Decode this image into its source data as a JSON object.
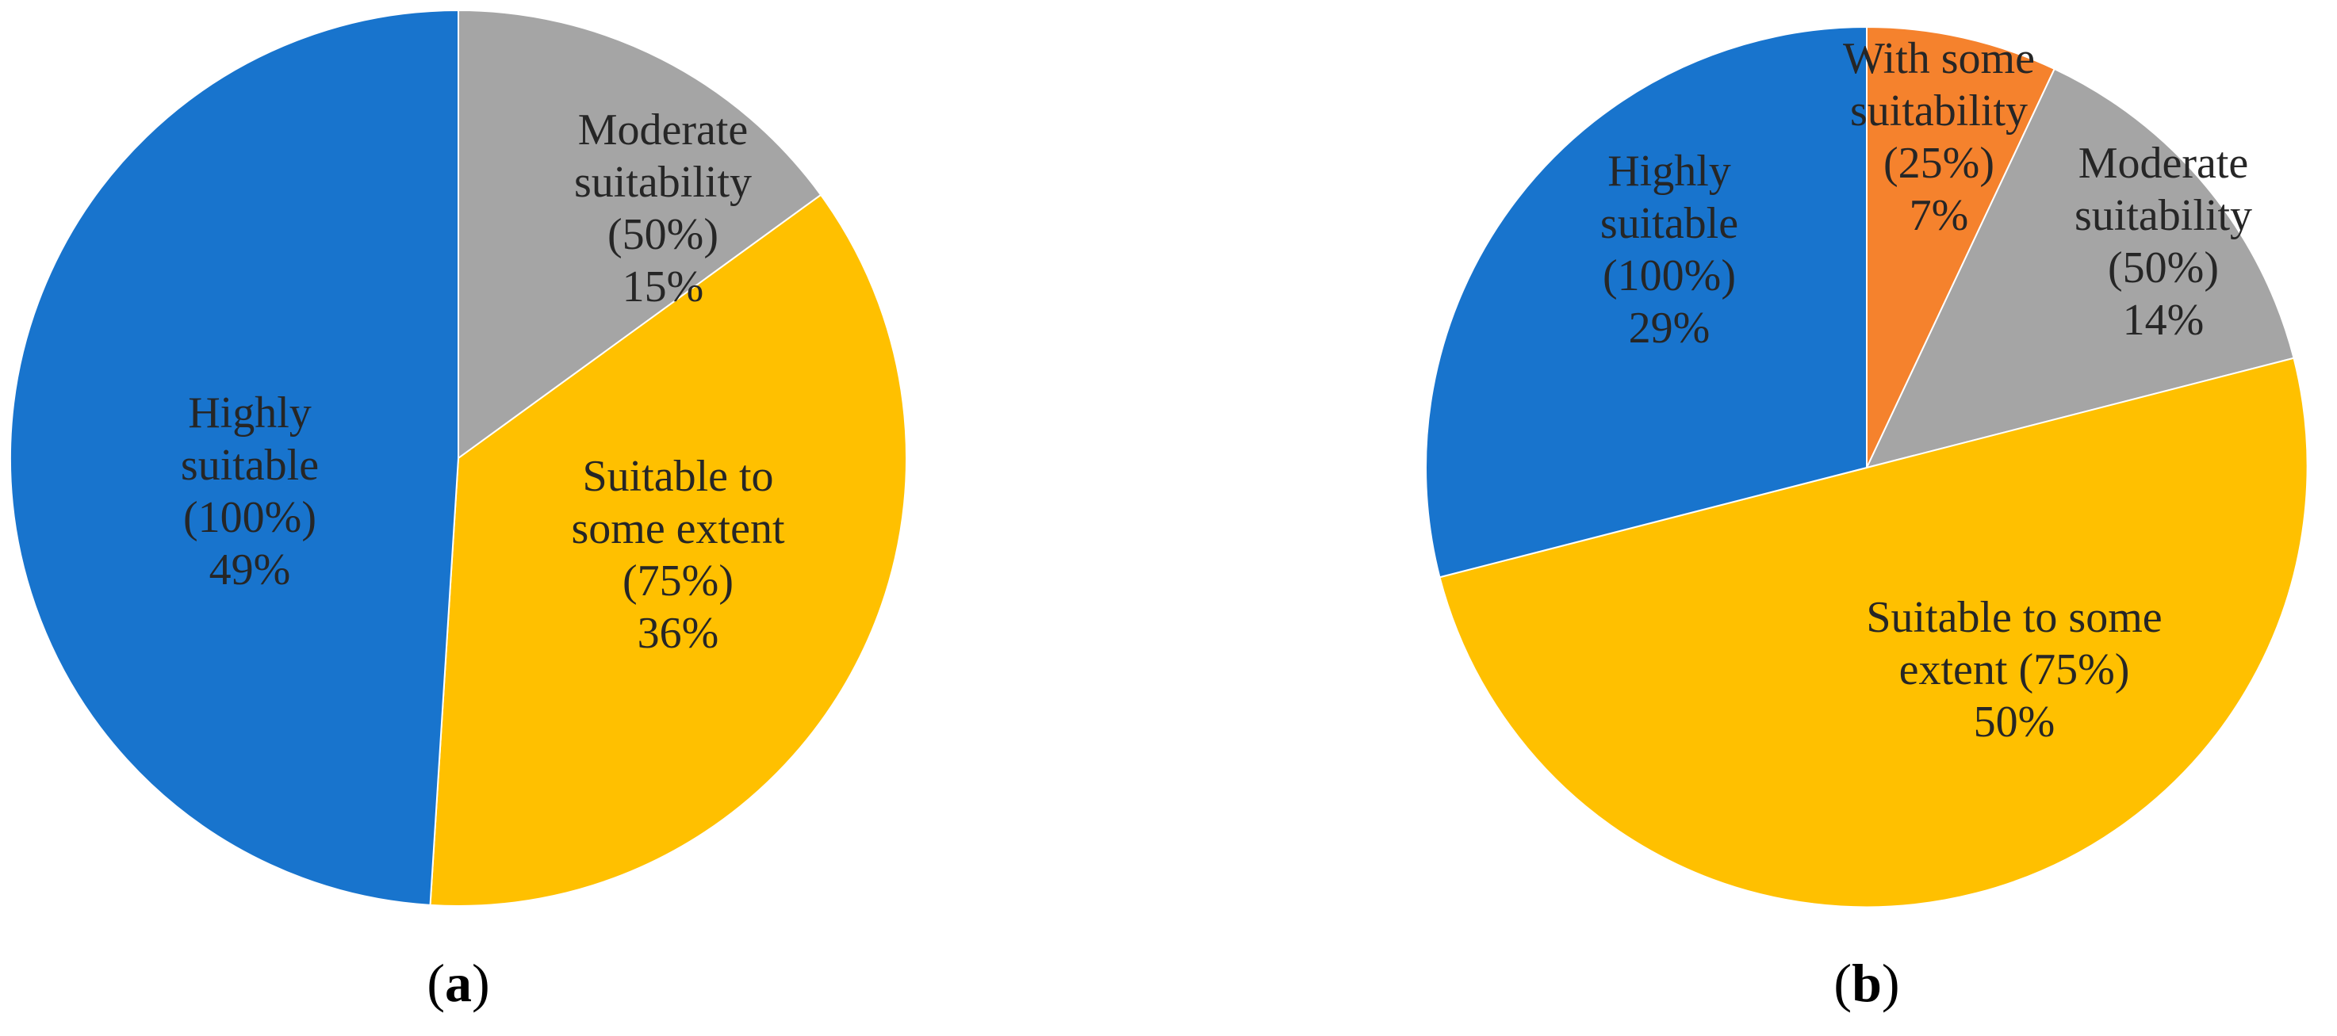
{
  "chart_data": [
    {
      "type": "pie",
      "panel": "(a)",
      "panel_letter": "a",
      "start_angle_deg": 0,
      "direction": "clockwise",
      "slices": [
        {
          "category": "Moderate suitability",
          "weight": "(50%)",
          "value": 15,
          "label": "15%",
          "color": "#A5A5A5",
          "label_lines": [
            "Moderate",
            "suitability",
            "(50%)",
            "15%"
          ]
        },
        {
          "category": "Suitable to some extent",
          "weight": "(75%)",
          "value": 36,
          "label": "36%",
          "color": "#FFC000",
          "label_lines": [
            "Suitable to",
            "some extent",
            "(75%)",
            "36%"
          ]
        },
        {
          "category": "Highly suitable",
          "weight": "(100%)",
          "value": 49,
          "label": "49%",
          "color": "#1874CD",
          "label_lines": [
            "Highly",
            "suitable",
            "(100%)",
            "49%"
          ]
        }
      ]
    },
    {
      "type": "pie",
      "panel": "(b)",
      "panel_letter": "b",
      "start_angle_deg": 0,
      "direction": "clockwise",
      "slices": [
        {
          "category": "With some suitability",
          "weight": "(25%)",
          "value": 7,
          "label": "7%",
          "color": "#F5822D",
          "label_lines": [
            "With some",
            "suitability",
            "(25%)",
            "7%"
          ]
        },
        {
          "category": "Moderate suitability",
          "weight": "(50%)",
          "value": 14,
          "label": "14%",
          "color": "#A5A5A5",
          "label_lines": [
            "Moderate",
            "suitability",
            "(50%)",
            "14%"
          ]
        },
        {
          "category": "Suitable to some extent",
          "weight": "(75%)",
          "value": 50,
          "label": "50%",
          "color": "#FFC000",
          "label_lines": [
            "Suitable to some",
            "extent (75%)",
            "50%"
          ]
        },
        {
          "category": "Highly suitable",
          "weight": "(100%)",
          "value": 29,
          "label": "29%",
          "color": "#1874CD",
          "label_lines": [
            "Highly",
            "suitable",
            "(100%)",
            "29%"
          ]
        }
      ]
    }
  ]
}
